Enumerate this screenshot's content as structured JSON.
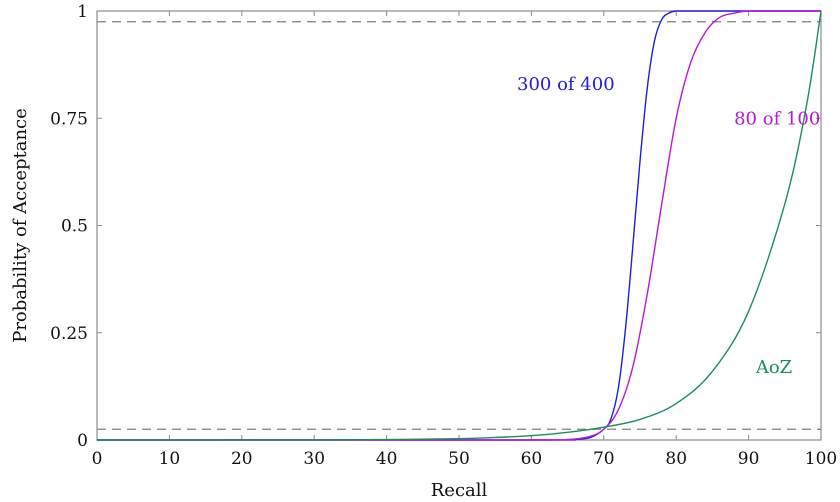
{
  "chart_data": {
    "type": "line",
    "title": "",
    "xlabel": "Recall",
    "ylabel": "Probability of Acceptance",
    "xlim": [
      0,
      100
    ],
    "ylim": [
      0,
      1
    ],
    "grid": false,
    "x_ticks": [
      0,
      10,
      20,
      30,
      40,
      50,
      60,
      70,
      80,
      90,
      100
    ],
    "x_tick_labels": [
      "0",
      "10",
      "20",
      "30",
      "40",
      "50",
      "60",
      "70",
      "80",
      "90",
      "100"
    ],
    "y_ticks": [
      0,
      0.25,
      0.5,
      0.75,
      1
    ],
    "y_tick_labels": [
      "0",
      "0.25",
      "0.5",
      "0.75",
      "1"
    ],
    "reference_lines": [
      {
        "axis": "y",
        "value": 0.025,
        "style": "dashed",
        "color": "#7f7f7f"
      },
      {
        "axis": "y",
        "value": 0.975,
        "style": "dashed",
        "color": "#7f7f7f"
      }
    ],
    "series": [
      {
        "name": "300 of 400",
        "color": "#1f1fd6",
        "x": [
          0,
          60,
          65,
          68,
          70,
          71,
          72,
          73,
          74,
          75,
          76,
          77,
          78,
          79,
          80,
          82,
          85,
          90,
          100
        ],
        "y": [
          0,
          0,
          0.001,
          0.005,
          0.025,
          0.05,
          0.12,
          0.26,
          0.45,
          0.65,
          0.82,
          0.93,
          0.98,
          0.995,
          1,
          1,
          1,
          1,
          1
        ]
      },
      {
        "name": "80 of 100",
        "color": "#b51ad6",
        "x": [
          0,
          60,
          65,
          68,
          70,
          72,
          74,
          76,
          78,
          80,
          82,
          84,
          86,
          88,
          90,
          95,
          100
        ],
        "y": [
          0,
          0,
          0.001,
          0.008,
          0.025,
          0.07,
          0.17,
          0.34,
          0.55,
          0.75,
          0.88,
          0.95,
          0.985,
          0.995,
          1,
          1,
          1
        ]
      },
      {
        "name": "AoZ",
        "color": "#1a8f5a",
        "x": [
          0,
          30,
          40,
          50,
          55,
          60,
          65,
          70,
          75,
          80,
          85,
          90,
          95,
          98,
          100
        ],
        "y": [
          0,
          0.0005,
          0.001,
          0.003,
          0.006,
          0.01,
          0.018,
          0.03,
          0.048,
          0.085,
          0.16,
          0.3,
          0.55,
          0.78,
          1
        ]
      }
    ],
    "series_labels": [
      {
        "text": "300 of 400",
        "x": 71.5,
        "y": 0.83
      },
      {
        "text": "80 of 100",
        "x": 88,
        "y": 0.75
      },
      {
        "text": "AoZ",
        "x": 91,
        "y": 0.17
      }
    ]
  }
}
